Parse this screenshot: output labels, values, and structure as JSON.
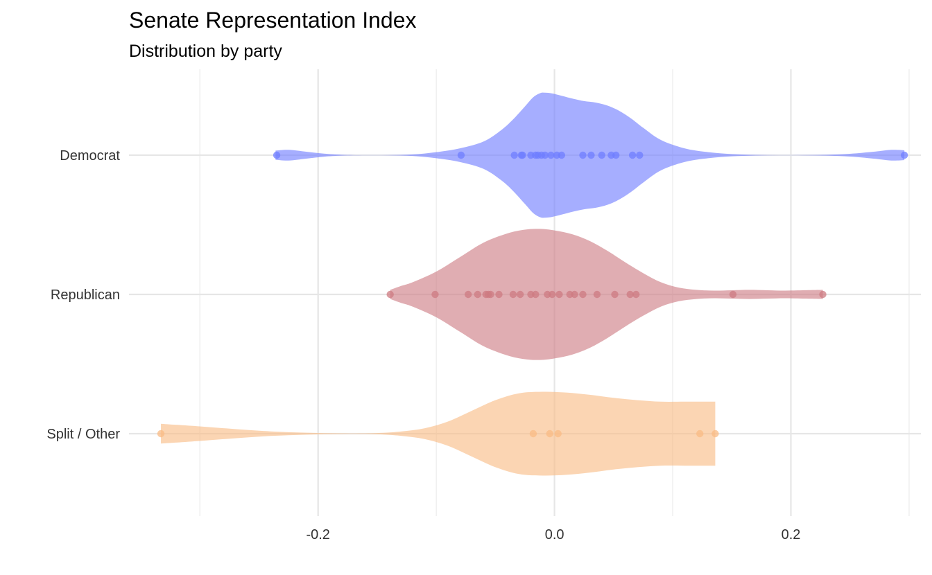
{
  "chart_data": {
    "type": "violin",
    "title": "Senate Representation Index",
    "subtitle": "Distribution by party",
    "xlabel": "",
    "ylabel": "",
    "xlim": [
      -0.36,
      0.31
    ],
    "x_ticks": [
      -0.2,
      0.0,
      0.2
    ],
    "x_tick_labels": [
      "-0.2",
      "0.0",
      "0.2"
    ],
    "minor_ticks": [
      -0.3,
      -0.1,
      0.1,
      0.3
    ],
    "grid": true,
    "legend": "none",
    "categories": [
      "Democrat",
      "Republican",
      "Split / Other"
    ],
    "series": [
      {
        "name": "Democrat",
        "color": "#6f7dff",
        "points": [
          -0.235,
          -0.079,
          -0.034,
          -0.028,
          -0.027,
          -0.02,
          -0.016,
          -0.014,
          -0.011,
          -0.008,
          -0.003,
          0.002,
          0.006,
          0.024,
          0.031,
          0.04,
          0.048,
          0.052,
          0.066,
          0.072,
          0.296
        ],
        "density": [
          [
            -0.236,
            0.06
          ],
          [
            -0.225,
            0.07
          ],
          [
            -0.21,
            0.045
          ],
          [
            -0.195,
            0.02
          ],
          [
            -0.18,
            0.006
          ],
          [
            -0.16,
            0.001
          ],
          [
            -0.14,
            0.002
          ],
          [
            -0.12,
            0.01
          ],
          [
            -0.1,
            0.04
          ],
          [
            -0.08,
            0.09
          ],
          [
            -0.06,
            0.18
          ],
          [
            -0.045,
            0.33
          ],
          [
            -0.035,
            0.47
          ],
          [
            -0.025,
            0.64
          ],
          [
            -0.018,
            0.76
          ],
          [
            -0.012,
            0.815
          ],
          [
            -0.008,
            0.82
          ],
          [
            -0.002,
            0.81
          ],
          [
            0.006,
            0.78
          ],
          [
            0.016,
            0.74
          ],
          [
            0.025,
            0.71
          ],
          [
            0.035,
            0.69
          ],
          [
            0.045,
            0.65
          ],
          [
            0.055,
            0.58
          ],
          [
            0.065,
            0.48
          ],
          [
            0.075,
            0.36
          ],
          [
            0.09,
            0.2
          ],
          [
            0.11,
            0.09
          ],
          [
            0.13,
            0.04
          ],
          [
            0.15,
            0.015
          ],
          [
            0.17,
            0.004
          ],
          [
            0.19,
            0.001
          ],
          [
            0.21,
            0.002
          ],
          [
            0.23,
            0.006
          ],
          [
            0.25,
            0.018
          ],
          [
            0.27,
            0.045
          ],
          [
            0.285,
            0.07
          ],
          [
            0.296,
            0.065
          ]
        ]
      },
      {
        "name": "Republican",
        "color": "#cd7b82",
        "points": [
          -0.139,
          -0.101,
          -0.073,
          -0.065,
          -0.058,
          -0.056,
          -0.054,
          -0.047,
          -0.035,
          -0.029,
          -0.02,
          -0.016,
          -0.006,
          -0.002,
          0.004,
          0.013,
          0.017,
          0.024,
          0.036,
          0.051,
          0.064,
          0.069,
          0.151,
          0.227
        ],
        "density": [
          [
            -0.139,
            0.06
          ],
          [
            -0.13,
            0.11
          ],
          [
            -0.12,
            0.16
          ],
          [
            -0.1,
            0.3
          ],
          [
            -0.08,
            0.49
          ],
          [
            -0.06,
            0.68
          ],
          [
            -0.04,
            0.8
          ],
          [
            -0.025,
            0.85
          ],
          [
            -0.012,
            0.86
          ],
          [
            0.0,
            0.84
          ],
          [
            0.015,
            0.79
          ],
          [
            0.03,
            0.7
          ],
          [
            0.045,
            0.57
          ],
          [
            0.06,
            0.42
          ],
          [
            0.075,
            0.28
          ],
          [
            0.09,
            0.16
          ],
          [
            0.105,
            0.09
          ],
          [
            0.12,
            0.06
          ],
          [
            0.135,
            0.05
          ],
          [
            0.15,
            0.055
          ],
          [
            0.165,
            0.06
          ],
          [
            0.18,
            0.055
          ],
          [
            0.195,
            0.05
          ],
          [
            0.21,
            0.055
          ],
          [
            0.227,
            0.06
          ]
        ]
      },
      {
        "name": "Split / Other",
        "color": "#f9bb84",
        "points": [
          -0.333,
          -0.018,
          -0.004,
          0.003,
          0.123,
          0.136
        ],
        "density": [
          [
            -0.333,
            0.13
          ],
          [
            -0.3,
            0.095
          ],
          [
            -0.27,
            0.06
          ],
          [
            -0.24,
            0.03
          ],
          [
            -0.21,
            0.012
          ],
          [
            -0.18,
            0.004
          ],
          [
            -0.15,
            0.008
          ],
          [
            -0.13,
            0.028
          ],
          [
            -0.11,
            0.07
          ],
          [
            -0.09,
            0.16
          ],
          [
            -0.07,
            0.3
          ],
          [
            -0.05,
            0.44
          ],
          [
            -0.03,
            0.53
          ],
          [
            -0.01,
            0.55
          ],
          [
            0.01,
            0.54
          ],
          [
            0.03,
            0.51
          ],
          [
            0.05,
            0.47
          ],
          [
            0.07,
            0.44
          ],
          [
            0.09,
            0.42
          ],
          [
            0.11,
            0.42
          ],
          [
            0.125,
            0.42
          ],
          [
            0.136,
            0.42
          ]
        ]
      }
    ]
  }
}
